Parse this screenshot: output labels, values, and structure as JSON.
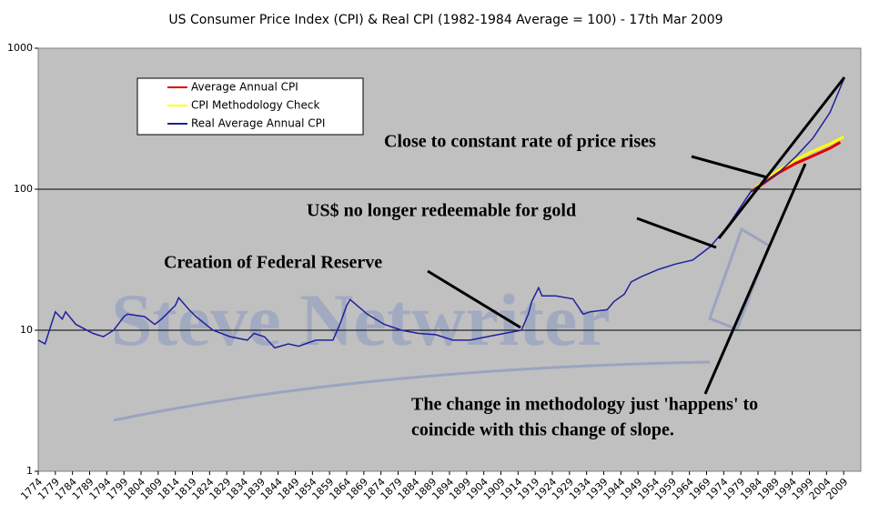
{
  "chart_data": {
    "type": "line",
    "title": "US Consumer Price Index (CPI) & Real CPI (1982-1984 Average = 100) - 17th Mar 2009",
    "log_y": true,
    "grid": true,
    "legend": "upper-left",
    "xlim": [
      1774,
      2014
    ],
    "ylim": [
      1,
      1000
    ],
    "yticks": [
      1,
      10,
      100,
      1000
    ],
    "xticks": [
      1774,
      1779,
      1784,
      1789,
      1794,
      1799,
      1804,
      1809,
      1814,
      1819,
      1824,
      1829,
      1834,
      1839,
      1844,
      1849,
      1854,
      1859,
      1864,
      1869,
      1874,
      1879,
      1884,
      1889,
      1894,
      1899,
      1904,
      1909,
      1914,
      1919,
      1924,
      1929,
      1934,
      1939,
      1944,
      1949,
      1954,
      1959,
      1964,
      1969,
      1974,
      1979,
      1984,
      1989,
      1994,
      1999,
      2004,
      2009
    ],
    "series": [
      {
        "name": "Average Annual CPI",
        "color": "#e00000",
        "x": [
          1982,
          1985,
          1990,
          1995,
          2000,
          2005,
          2008
        ],
        "values": [
          96.5,
          107.6,
          130.7,
          152.4,
          172.2,
          195.3,
          215.3
        ]
      },
      {
        "name": "CPI Methodology Check",
        "color": "#ffff00",
        "x": [
          1982,
          1985,
          1990,
          1995,
          2000,
          2005,
          2009
        ],
        "values": [
          97,
          110,
          136,
          162,
          186,
          210,
          235
        ]
      },
      {
        "name": "Real Average Annual CPI",
        "color": "#2020a0",
        "x": [
          1774,
          1776,
          1779,
          1781,
          1782,
          1785,
          1790,
          1793,
          1796,
          1799,
          1800,
          1805,
          1808,
          1810,
          1814,
          1815,
          1818,
          1820,
          1825,
          1830,
          1835,
          1837,
          1840,
          1843,
          1847,
          1850,
          1855,
          1860,
          1862,
          1864,
          1865,
          1867,
          1870,
          1875,
          1880,
          1885,
          1890,
          1895,
          1900,
          1905,
          1910,
          1915,
          1917,
          1918,
          1920,
          1921,
          1925,
          1930,
          1933,
          1935,
          1940,
          1942,
          1945,
          1947,
          1950,
          1955,
          1960,
          1965,
          1970,
          1975,
          1980,
          1982,
          1985,
          1990,
          1995,
          2000,
          2005,
          2009
        ],
        "values": [
          8.5,
          8,
          13.5,
          12,
          13.5,
          11,
          9.5,
          9,
          10,
          12.5,
          13,
          12.5,
          11,
          12,
          15,
          17,
          14,
          12.5,
          10,
          9,
          8.5,
          9.5,
          9,
          7.5,
          8,
          7.7,
          8.5,
          8.5,
          11,
          15,
          16.5,
          15,
          13,
          11,
          10,
          9.5,
          9.3,
          8.5,
          8.5,
          9,
          9.5,
          10,
          13,
          16,
          20,
          17.5,
          17.5,
          16.7,
          13,
          13.5,
          14,
          16,
          18,
          22,
          24,
          27,
          29.5,
          31.5,
          39,
          54,
          82,
          97,
          108,
          131,
          170,
          230,
          350,
          600
        ]
      }
    ],
    "watermark": "Steve Netwriter",
    "annotations": [
      "Close to constant rate of price rises",
      "US$ no longer redeemable for gold",
      "Creation of Federal Reserve",
      "The change in methodology just 'happens' to",
      "coincide with this change of slope."
    ]
  }
}
